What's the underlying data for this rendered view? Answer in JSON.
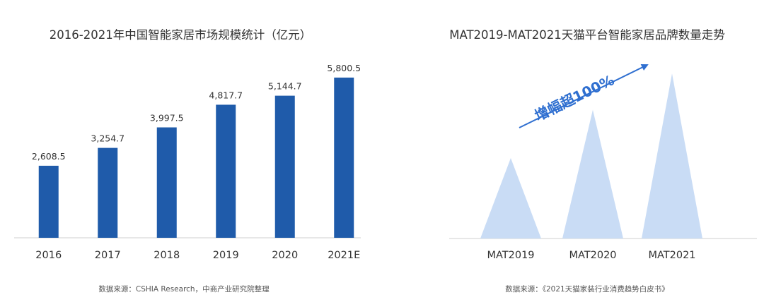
{
  "chart_data": [
    {
      "type": "bar",
      "title": "2016-2021年中国智能家居市场规模统计（亿元）",
      "categories": [
        "2016",
        "2017",
        "2018",
        "2019",
        "2020",
        "2021E"
      ],
      "values": [
        2608.5,
        3254.7,
        3997.5,
        4817.7,
        5144.7,
        5800.5
      ],
      "data_labels": [
        "2,608.5",
        "3,254.7",
        "3,997.5",
        "4,817.7",
        "5,144.7",
        "5,800.5"
      ],
      "ylim": [
        0,
        7000
      ],
      "grid": false,
      "bar_color": "#1f5baa",
      "source": "数据来源：CSHIA Research，中商产业研究院整理"
    },
    {
      "type": "area",
      "title": "MAT2019-MAT2021天猫平台智能家居品牌数量走势",
      "categories": [
        "MAT2019",
        "MAT2020",
        "MAT2021"
      ],
      "values": [
        1.0,
        1.6,
        2.05
      ],
      "annotation": "增幅超100%",
      "grid": false,
      "shape_color": "#c9dcf5",
      "arrow_color": "#2f6fd0",
      "source": "数据来源：《2021天猫家装行业消费趋势白皮书》"
    }
  ]
}
